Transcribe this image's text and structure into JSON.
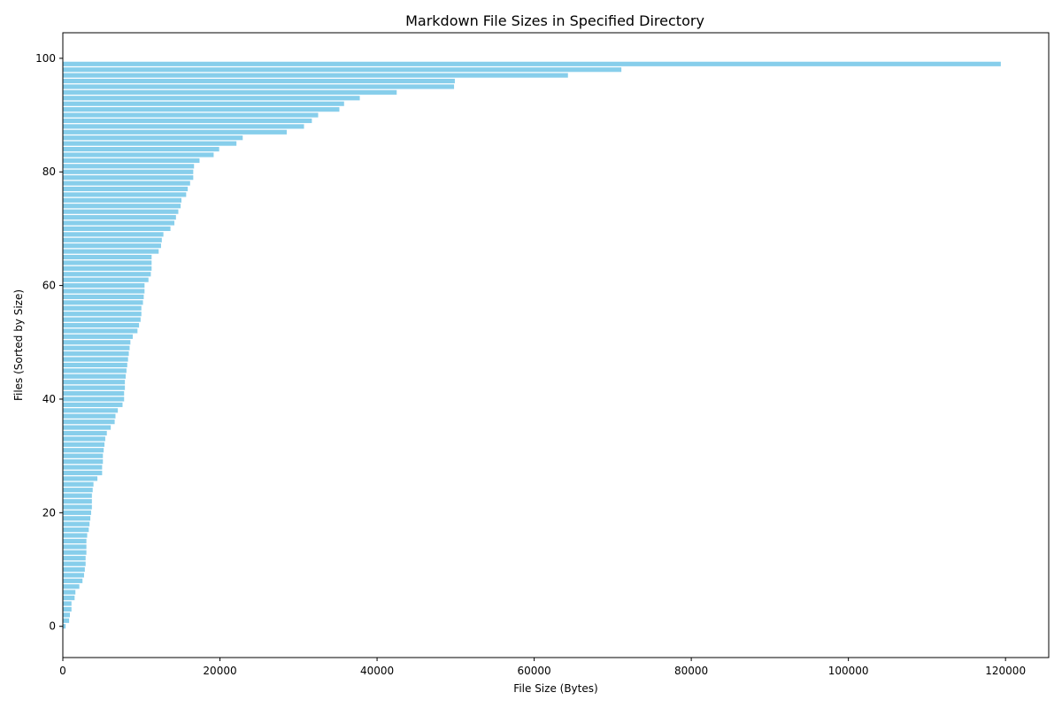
{
  "chart_data": {
    "type": "bar",
    "orientation": "horizontal",
    "title": "Markdown File Sizes in Specified Directory",
    "xlabel": "File Size (Bytes)",
    "ylabel": "Files (Sorted by Size)",
    "xlim": [
      0,
      125500
    ],
    "ylim": [
      -5.5,
      104.5
    ],
    "xticks": [
      0,
      20000,
      40000,
      60000,
      80000,
      100000,
      120000
    ],
    "yticks": [
      0,
      20,
      40,
      60,
      80,
      100
    ],
    "grid": false,
    "bar_color": "#87ceeb",
    "series": [
      {
        "values": [
          350,
          800,
          900,
          1100,
          1100,
          1500,
          1600,
          2100,
          2500,
          2700,
          2800,
          2900,
          2900,
          3000,
          3000,
          3000,
          3100,
          3300,
          3400,
          3500,
          3600,
          3700,
          3700,
          3700,
          3800,
          3900,
          4400,
          5000,
          5000,
          5100,
          5100,
          5200,
          5300,
          5400,
          5600,
          6100,
          6600,
          6700,
          7000,
          7600,
          7800,
          7800,
          7900,
          7900,
          8000,
          8100,
          8200,
          8300,
          8400,
          8500,
          8600,
          8900,
          9500,
          9700,
          9900,
          10000,
          10000,
          10200,
          10300,
          10400,
          10400,
          10900,
          11200,
          11300,
          11300,
          11300,
          12200,
          12500,
          12600,
          12800,
          13700,
          14200,
          14400,
          14700,
          15000,
          15100,
          15700,
          15900,
          16200,
          16600,
          16600,
          16700,
          17400,
          19200,
          19900,
          22100,
          22900,
          28500,
          30700,
          31700,
          32500,
          35200,
          35800,
          37800,
          42500,
          49800,
          49900,
          64300,
          71100,
          119400
        ]
      }
    ]
  }
}
